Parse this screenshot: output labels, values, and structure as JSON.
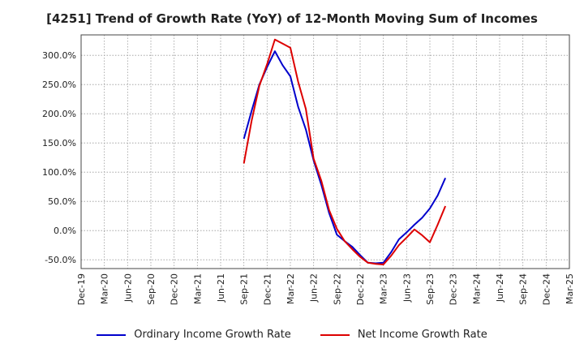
{
  "chart_data": {
    "type": "line",
    "title": "[4251]  Trend of Growth Rate (YoY) of 12-Month Moving Sum of Incomes",
    "xlabel": "",
    "ylabel": "",
    "ylim": [
      -65,
      335
    ],
    "y_ticks": [
      -50,
      0,
      50,
      100,
      150,
      200,
      250,
      300
    ],
    "y_tick_labels": [
      "-50.0%",
      "0.0%",
      "50.0%",
      "100.0%",
      "150.0%",
      "200.0%",
      "250.0%",
      "300.0%"
    ],
    "x_tick_labels": [
      "Dec-19",
      "Mar-20",
      "Jun-20",
      "Sep-20",
      "Dec-20",
      "Mar-21",
      "Jun-21",
      "Sep-21",
      "Dec-21",
      "Mar-22",
      "Jun-22",
      "Sep-22",
      "Dec-22",
      "Mar-23",
      "Jun-23",
      "Sep-23",
      "Dec-23",
      "Mar-24",
      "Jun-24",
      "Sep-24",
      "Dec-24",
      "Mar-25"
    ],
    "grid": true,
    "legend_position": "bottom",
    "series": [
      {
        "name": "Ordinary Income Growth Rate",
        "color": "#0000cc",
        "start_month_index": 21,
        "values": [
          157,
          205,
          250,
          280,
          307,
          283,
          264,
          212,
          173,
          120,
          78,
          30,
          -7,
          -18,
          -28,
          -42,
          -55,
          -56,
          -55,
          -37,
          -15,
          -3,
          10,
          22,
          38,
          60,
          90
        ]
      },
      {
        "name": "Net Income Growth Rate",
        "color": "#dd0000",
        "start_month_index": 21,
        "values": [
          115,
          188,
          248,
          285,
          327,
          320,
          313,
          255,
          208,
          123,
          85,
          35,
          3,
          -18,
          -32,
          -45,
          -55,
          -57,
          -58,
          -43,
          -25,
          -12,
          2,
          -8,
          -20,
          10,
          42
        ]
      }
    ]
  }
}
